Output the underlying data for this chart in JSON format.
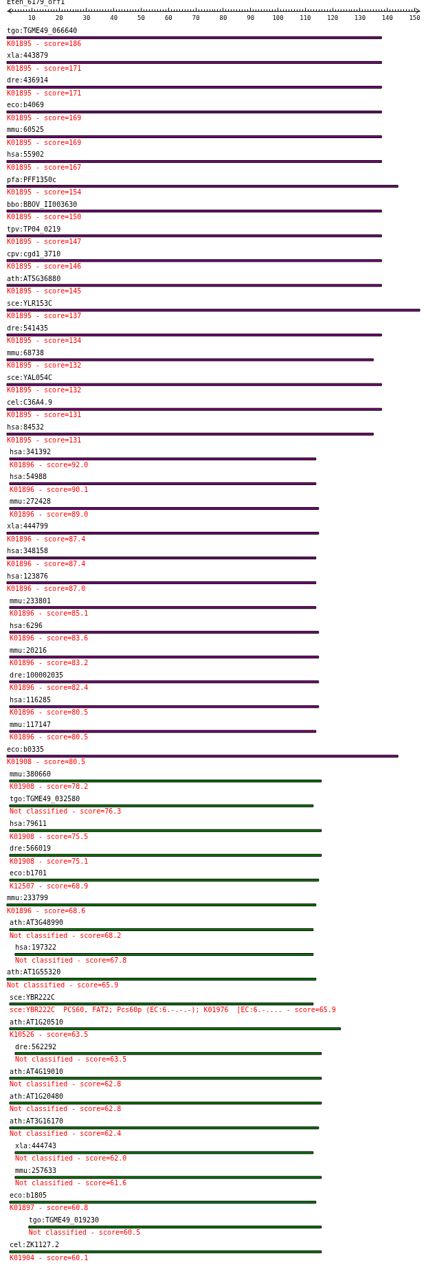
{
  "chart_data": {
    "type": "bar",
    "orientation": "horizontal",
    "title": "Eten_6179_orf1",
    "categories": [
      "tgo:TGME49_066640",
      "xla:443879",
      "dre:436914",
      "eco:b4069",
      "mmu:60525",
      "hsa:55902",
      "pfa:PFF1350c",
      "bbo:BBOV_II003630",
      "tpv:TP04_0219",
      "cpv:cgd1_3710",
      "ath:AT5G36880",
      "sce:YLR153C",
      "dre:541435",
      "mmu:68738",
      "sce:YAL054C",
      "cel:C36A4.9",
      "hsa:84532",
      "hsa:341392",
      "hsa:54988",
      "mmu:272428",
      "xla:444799",
      "hsa:348158",
      "hsa:123876",
      "mmu:233801",
      "hsa:6296",
      "mmu:20216",
      "dre:100002035",
      "hsa:116285",
      "mmu:117147",
      "eco:b0335",
      "mmu:380660",
      "tgo:TGME49_032580",
      "hsa:79611",
      "dre:566019",
      "eco:b1701",
      "mmu:233799",
      "ath:AT3G48990",
      "hsa:197322",
      "ath:AT1G55320",
      "sce:YBR222C",
      "ath:AT1G20510",
      "dre:562292",
      "ath:AT4G19010",
      "ath:AT1G20480",
      "ath:AT3G16170",
      "xla:444743",
      "mmu:257633",
      "eco:b1805",
      "tgo:TGME49_019230",
      "cel:ZK1127.2"
    ],
    "base": [
      1,
      1,
      1,
      1,
      1,
      1,
      1,
      1,
      1,
      1,
      1,
      1,
      1,
      1,
      1,
      1,
      1,
      2,
      2,
      2,
      1,
      1,
      1,
      2,
      2,
      2,
      2,
      2,
      2,
      1,
      2,
      2,
      2,
      2,
      2,
      1,
      2,
      4,
      1,
      2,
      2,
      4,
      2,
      2,
      2,
      4,
      4,
      2,
      9,
      2
    ],
    "values": [
      137,
      137,
      137,
      137,
      137,
      137,
      143,
      137,
      137,
      137,
      137,
      151,
      137,
      134,
      137,
      137,
      134,
      112,
      112,
      113,
      114,
      113,
      113,
      112,
      113,
      113,
      113,
      113,
      112,
      143,
      114,
      111,
      114,
      114,
      113,
      113,
      111,
      109,
      113,
      111,
      121,
      112,
      114,
      114,
      113,
      109,
      112,
      112,
      107,
      114
    ],
    "colors": [
      "#800080",
      "#800080",
      "#800080",
      "#800080",
      "#800080",
      "#800080",
      "#800080",
      "#800080",
      "#800080",
      "#800080",
      "#800080",
      "#800080",
      "#800080",
      "#800080",
      "#800080",
      "#800080",
      "#800080",
      "#800080",
      "#800080",
      "#800080",
      "#800080",
      "#800080",
      "#800080",
      "#800080",
      "#800080",
      "#800080",
      "#800080",
      "#800080",
      "#800080",
      "#800080",
      "#008000",
      "#008000",
      "#008000",
      "#008000",
      "#008000",
      "#008000",
      "#008000",
      "#008000",
      "#008000",
      "#008000",
      "#008000",
      "#008000",
      "#008000",
      "#008000",
      "#008000",
      "#008000",
      "#008000",
      "#008000",
      "#008000",
      "#008000"
    ],
    "xlim": [
      1,
      152
    ],
    "xticks": [
      {
        "value": 2,
        "label": null
      },
      {
        "value": 3,
        "label": null
      },
      {
        "value": 4,
        "label": null
      },
      {
        "value": 5,
        "label": null
      },
      {
        "value": 6,
        "label": null
      },
      {
        "value": 7,
        "label": null
      },
      {
        "value": 8,
        "label": null
      },
      {
        "value": 9,
        "label": null
      },
      10,
      {
        "value": 11,
        "label": null
      },
      {
        "value": 12,
        "label": null
      },
      {
        "value": 13,
        "label": null
      },
      {
        "value": 14,
        "label": null
      },
      {
        "value": 15,
        "label": null
      },
      {
        "value": 16,
        "label": null
      },
      {
        "value": 17,
        "label": null
      },
      {
        "value": 18,
        "label": null
      },
      {
        "value": 19,
        "label": null
      },
      20,
      {
        "value": 21,
        "label": null
      },
      {
        "value": 22,
        "label": null
      },
      {
        "value": 23,
        "label": null
      },
      {
        "value": 24,
        "label": null
      },
      {
        "value": 25,
        "label": null
      },
      {
        "value": 26,
        "label": null
      },
      {
        "value": 27,
        "label": null
      },
      {
        "value": 28,
        "label": null
      },
      {
        "value": 29,
        "label": null
      },
      30,
      {
        "value": 31,
        "label": null
      },
      {
        "value": 32,
        "label": null
      },
      {
        "value": 33,
        "label": null
      },
      {
        "value": 34,
        "label": null
      },
      {
        "value": 35,
        "label": null
      },
      {
        "value": 36,
        "label": null
      },
      {
        "value": 37,
        "label": null
      },
      {
        "value": 38,
        "label": null
      },
      {
        "value": 39,
        "label": null
      },
      40,
      {
        "value": 41,
        "label": null
      },
      {
        "value": 42,
        "label": null
      },
      {
        "value": 43,
        "label": null
      },
      {
        "value": 44,
        "label": null
      },
      {
        "value": 45,
        "label": null
      },
      {
        "value": 46,
        "label": null
      },
      {
        "value": 47,
        "label": null
      },
      {
        "value": 48,
        "label": null
      },
      {
        "value": 49,
        "label": null
      },
      50,
      {
        "value": 51,
        "label": null
      },
      {
        "value": 52,
        "label": null
      },
      {
        "value": 53,
        "label": null
      },
      {
        "value": 54,
        "label": null
      },
      {
        "value": 55,
        "label": null
      },
      {
        "value": 56,
        "label": null
      },
      {
        "value": 57,
        "label": null
      },
      {
        "value": 58,
        "label": null
      },
      {
        "value": 59,
        "label": null
      },
      60,
      {
        "value": 61,
        "label": null
      },
      {
        "value": 62,
        "label": null
      },
      {
        "value": 63,
        "label": null
      },
      {
        "value": 64,
        "label": null
      },
      {
        "value": 65,
        "label": null
      },
      {
        "value": 66,
        "label": null
      },
      {
        "value": 67,
        "label": null
      },
      {
        "value": 68,
        "label": null
      },
      {
        "value": 69,
        "label": null
      },
      70,
      {
        "value": 71,
        "label": null
      },
      {
        "value": 72,
        "label": null
      },
      {
        "value": 73,
        "label": null
      },
      {
        "value": 74,
        "label": null
      },
      {
        "value": 75,
        "label": null
      },
      {
        "value": 76,
        "label": null
      },
      {
        "value": 77,
        "label": null
      },
      {
        "value": 78,
        "label": null
      },
      {
        "value": 79,
        "label": null
      },
      80,
      {
        "value": 81,
        "label": null
      },
      {
        "value": 82,
        "label": null
      },
      {
        "value": 83,
        "label": null
      },
      {
        "value": 84,
        "label": null
      },
      {
        "value": 85,
        "label": null
      },
      {
        "value": 86,
        "label": null
      },
      {
        "value": 87,
        "label": null
      },
      {
        "value": 88,
        "label": null
      },
      {
        "value": 89,
        "label": null
      },
      90,
      {
        "value": 91,
        "label": null
      },
      {
        "value": 92,
        "label": null
      },
      {
        "value": 93,
        "label": null
      },
      {
        "value": 94,
        "label": null
      },
      {
        "value": 95,
        "label": null
      },
      {
        "value": 96,
        "label": null
      },
      {
        "value": 97,
        "label": null
      },
      {
        "value": 98,
        "label": null
      },
      {
        "value": 99,
        "label": null
      },
      100,
      {
        "value": 101,
        "label": null
      },
      {
        "value": 102,
        "label": null
      },
      {
        "value": 103,
        "label": null
      },
      {
        "value": 104,
        "label": null
      },
      {
        "value": 105,
        "label": null
      },
      {
        "value": 106,
        "label": null
      },
      {
        "value": 107,
        "label": null
      },
      {
        "value": 108,
        "label": null
      },
      {
        "value": 109,
        "label": null
      },
      110,
      {
        "value": 111,
        "label": null
      },
      {
        "value": 112,
        "label": null
      },
      {
        "value": 113,
        "label": null
      },
      {
        "value": 114,
        "label": null
      },
      {
        "value": 115,
        "label": null
      },
      {
        "value": 116,
        "label": null
      },
      {
        "value": 117,
        "label": null
      },
      {
        "value": 118,
        "label": null
      },
      {
        "value": 119,
        "label": null
      },
      120,
      {
        "value": 121,
        "label": null
      },
      {
        "value": 122,
        "label": null
      },
      {
        "value": 123,
        "label": null
      },
      {
        "value": 124,
        "label": null
      },
      {
        "value": 125,
        "label": null
      },
      {
        "value": 126,
        "label": null
      },
      {
        "value": 127,
        "label": null
      },
      {
        "value": 128,
        "label": null
      },
      {
        "value": 129,
        "label": null
      },
      130,
      {
        "value": 131,
        "label": null
      },
      {
        "value": 132,
        "label": null
      },
      {
        "value": 133,
        "label": null
      },
      {
        "value": 134,
        "label": null
      },
      {
        "value": 135,
        "label": null
      },
      {
        "value": 136,
        "label": null
      },
      {
        "value": 137,
        "label": null
      },
      {
        "value": 138,
        "label": null
      },
      {
        "value": 139,
        "label": null
      },
      140,
      {
        "value": 141,
        "label": null
      },
      {
        "value": 142,
        "label": null
      },
      {
        "value": 143,
        "label": null
      },
      {
        "value": 144,
        "label": null
      },
      {
        "value": 145,
        "label": null
      },
      {
        "value": 146,
        "label": null
      },
      {
        "value": 147,
        "label": null
      },
      {
        "value": 148,
        "label": null
      },
      {
        "value": 149,
        "label": null
      },
      150
    ],
    "annotations": [
      "K01895 - score=186",
      "K01895 - score=171",
      "K01895 - score=171",
      "K01895 - score=169",
      "K01895 - score=169",
      "K01895 - score=167",
      "K01895 - score=154",
      "K01895 - score=150",
      "K01895 - score=147",
      "K01895 - score=146",
      "K01895 - score=145",
      "K01895 - score=137",
      "K01895 - score=134",
      "K01895 - score=132",
      "K01895 - score=132",
      "K01895 - score=131",
      "K01895 - score=131",
      "K01896 - score=92.0",
      "K01896 - score=90.1",
      "K01896 - score=89.0",
      "K01896 - score=87.4",
      "K01896 - score=87.4",
      "K01896 - score=87.0",
      "K01896 - score=85.1",
      "K01896 - score=83.6",
      "K01896 - score=83.2",
      "K01896 - score=82.4",
      "K01896 - score=80.5",
      "K01896 - score=80.5",
      "K01908 - score=80.5",
      "K01908 - score=78.2",
      "Not classified - score=76.3",
      "K01908 - score=75.5",
      "K01908 - score=75.1",
      "K12507 - score=68.9",
      "K01896 - score=68.6",
      "Not classified - score=68.2",
      "Not classified - score=67.8",
      "Not classified - score=65.9",
      "  sce:YBR222C  PCS60, FAT2; Pcs60p (EC:6.-.-.-); K01976  [EC:6.-.... - score=65.9",
      "K10526 - score=63.5",
      "Not classified - score=63.5",
      "Not classified - score=62.8",
      "Not classified - score=62.8",
      "Not classified - score=62.4",
      "Not classified - score=62.0",
      "Not classified - score=61.6",
      "K01897 - score=60.8",
      "Not classified - score=60.5",
      "K01904 - score=60.1"
    ]
  }
}
